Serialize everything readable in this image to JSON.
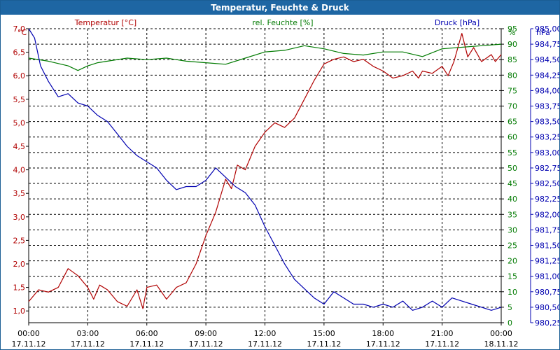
{
  "window": {
    "title": "Temperatur, Feuchte & Druck"
  },
  "colors": {
    "temperature": "#b00000",
    "humidity": "#007a00",
    "pressure": "#0000b0",
    "axis": "#000000",
    "grid": "#000000"
  },
  "chart_data": {
    "type": "line",
    "title": "Temperatur, Feuchte & Druck",
    "x_ticks": [
      {
        "time": "00:00",
        "date": "17.11.12"
      },
      {
        "time": "03:00",
        "date": "17.11.12"
      },
      {
        "time": "06:00",
        "date": "17.11.12"
      },
      {
        "time": "09:00",
        "date": "17.11.12"
      },
      {
        "time": "12:00",
        "date": "17.11.12"
      },
      {
        "time": "15:00",
        "date": "17.11.12"
      },
      {
        "time": "18:00",
        "date": "17.11.12"
      },
      {
        "time": "21:00",
        "date": "17.11.12"
      },
      {
        "time": "00:00",
        "date": "18.11.12"
      }
    ],
    "x_range_hours": [
      0,
      24
    ],
    "axes": {
      "temperature": {
        "label": "Temperatur [°C]",
        "unit": "°C",
        "range": [
          0.75,
          7.0
        ],
        "ticks": [
          "1,0",
          "1,5",
          "2,0",
          "2,5",
          "3,0",
          "3,5",
          "4,0",
          "4,5",
          "5,0",
          "5,5",
          "6,0",
          "6,5",
          "7,0"
        ],
        "tick_values": [
          1.0,
          1.5,
          2.0,
          2.5,
          3.0,
          3.5,
          4.0,
          4.5,
          5.0,
          5.5,
          6.0,
          6.5,
          7.0
        ]
      },
      "humidity": {
        "label": "rel. Feuchte [%]",
        "unit": "%",
        "range": [
          0,
          95
        ],
        "ticks": [
          "0",
          "5",
          "10",
          "15",
          "20",
          "25",
          "30",
          "35",
          "40",
          "45",
          "50",
          "55",
          "60",
          "65",
          "70",
          "75",
          "80",
          "85",
          "90",
          "95"
        ],
        "tick_values": [
          0,
          5,
          10,
          15,
          20,
          25,
          30,
          35,
          40,
          45,
          50,
          55,
          60,
          65,
          70,
          75,
          80,
          85,
          90,
          95
        ]
      },
      "pressure": {
        "label": "Druck [hPa]",
        "unit": "hPa",
        "range": [
          980.25,
          985.0
        ],
        "ticks": [
          "980,25",
          "980,50",
          "980,75",
          "981,00",
          "981,25",
          "981,50",
          "981,75",
          "982,00",
          "982,25",
          "982,50",
          "982,75",
          "983,00",
          "983,25",
          "983,50",
          "983,75",
          "984,00",
          "984,25",
          "984,50",
          "984,75",
          "985,00"
        ],
        "tick_values": [
          980.25,
          980.5,
          980.75,
          981.0,
          981.25,
          981.5,
          981.75,
          982.0,
          982.25,
          982.5,
          982.75,
          983.0,
          983.25,
          983.5,
          983.75,
          984.0,
          984.25,
          984.5,
          984.75,
          985.0
        ]
      }
    },
    "series": [
      {
        "name": "Temperatur [°C]",
        "axis": "temperature",
        "points": [
          [
            0,
            1.2
          ],
          [
            0.5,
            1.45
          ],
          [
            1,
            1.4
          ],
          [
            1.5,
            1.5
          ],
          [
            2,
            1.9
          ],
          [
            2.5,
            1.75
          ],
          [
            3,
            1.5
          ],
          [
            3.3,
            1.25
          ],
          [
            3.6,
            1.55
          ],
          [
            4,
            1.45
          ],
          [
            4.5,
            1.2
          ],
          [
            5,
            1.1
          ],
          [
            5.5,
            1.45
          ],
          [
            5.8,
            1.05
          ],
          [
            6,
            1.5
          ],
          [
            6.5,
            1.55
          ],
          [
            7,
            1.25
          ],
          [
            7.5,
            1.5
          ],
          [
            8,
            1.6
          ],
          [
            8.5,
            2.0
          ],
          [
            9,
            2.6
          ],
          [
            9.5,
            3.1
          ],
          [
            10,
            3.8
          ],
          [
            10.3,
            3.6
          ],
          [
            10.6,
            4.1
          ],
          [
            11,
            4.0
          ],
          [
            11.5,
            4.5
          ],
          [
            12,
            4.8
          ],
          [
            12.5,
            5.0
          ],
          [
            13,
            4.9
          ],
          [
            13.5,
            5.1
          ],
          [
            14,
            5.5
          ],
          [
            14.5,
            5.9
          ],
          [
            15,
            6.25
          ],
          [
            15.5,
            6.35
          ],
          [
            16,
            6.4
          ],
          [
            16.5,
            6.3
          ],
          [
            17,
            6.35
          ],
          [
            17.5,
            6.2
          ],
          [
            18,
            6.1
          ],
          [
            18.5,
            5.95
          ],
          [
            19,
            6.0
          ],
          [
            19.5,
            6.1
          ],
          [
            19.8,
            5.95
          ],
          [
            20,
            6.1
          ],
          [
            20.5,
            6.05
          ],
          [
            21,
            6.2
          ],
          [
            21.3,
            6.0
          ],
          [
            21.6,
            6.3
          ],
          [
            22,
            6.9
          ],
          [
            22.3,
            6.4
          ],
          [
            22.6,
            6.6
          ],
          [
            23,
            6.3
          ],
          [
            23.5,
            6.45
          ],
          [
            23.7,
            6.3
          ],
          [
            24,
            6.45
          ]
        ]
      },
      {
        "name": "rel. Feuchte [%]",
        "axis": "humidity",
        "points": [
          [
            0,
            85.5
          ],
          [
            1,
            84.5
          ],
          [
            2,
            83.0
          ],
          [
            2.5,
            81.5
          ],
          [
            3,
            83.0
          ],
          [
            3.5,
            84.0
          ],
          [
            4,
            84.5
          ],
          [
            5,
            85.5
          ],
          [
            6,
            85.0
          ],
          [
            7,
            85.5
          ],
          [
            8,
            84.5
          ],
          [
            9,
            84.0
          ],
          [
            10,
            83.5
          ],
          [
            11,
            85.5
          ],
          [
            12,
            87.5
          ],
          [
            13,
            88.0
          ],
          [
            14,
            89.5
          ],
          [
            15,
            88.5
          ],
          [
            16,
            87.0
          ],
          [
            17,
            86.5
          ],
          [
            18,
            87.5
          ],
          [
            19,
            87.5
          ],
          [
            20,
            86.0
          ],
          [
            21,
            88.5
          ],
          [
            22,
            89.0
          ],
          [
            23,
            89.5
          ],
          [
            24,
            90.0
          ]
        ]
      },
      {
        "name": "Druck [hPa]",
        "axis": "pressure",
        "points": [
          [
            0,
            985.0
          ],
          [
            0.3,
            984.85
          ],
          [
            0.6,
            984.4
          ],
          [
            1,
            984.15
          ],
          [
            1.5,
            983.9
          ],
          [
            2,
            983.95
          ],
          [
            2.5,
            983.8
          ],
          [
            3,
            983.75
          ],
          [
            3.5,
            983.6
          ],
          [
            4,
            983.5
          ],
          [
            4.5,
            983.3
          ],
          [
            5,
            983.1
          ],
          [
            5.5,
            982.95
          ],
          [
            6,
            982.85
          ],
          [
            6.5,
            982.75
          ],
          [
            7,
            982.55
          ],
          [
            7.5,
            982.4
          ],
          [
            8,
            982.45
          ],
          [
            8.5,
            982.45
          ],
          [
            9,
            982.55
          ],
          [
            9.5,
            982.75
          ],
          [
            10,
            982.6
          ],
          [
            10.5,
            982.45
          ],
          [
            11,
            982.35
          ],
          [
            11.5,
            982.15
          ],
          [
            12,
            981.8
          ],
          [
            12.5,
            981.5
          ],
          [
            13,
            981.2
          ],
          [
            13.5,
            980.95
          ],
          [
            14,
            980.8
          ],
          [
            14.5,
            980.65
          ],
          [
            15,
            980.55
          ],
          [
            15.5,
            980.75
          ],
          [
            16,
            980.65
          ],
          [
            16.5,
            980.55
          ],
          [
            17,
            980.55
          ],
          [
            17.5,
            980.5
          ],
          [
            18,
            980.55
          ],
          [
            18.5,
            980.5
          ],
          [
            19,
            980.6
          ],
          [
            19.5,
            980.45
          ],
          [
            20,
            980.5
          ],
          [
            20.5,
            980.6
          ],
          [
            21,
            980.5
          ],
          [
            21.5,
            980.65
          ],
          [
            22,
            980.6
          ],
          [
            22.5,
            980.55
          ],
          [
            23,
            980.5
          ],
          [
            23.5,
            980.45
          ],
          [
            24,
            980.5
          ]
        ]
      }
    ]
  }
}
